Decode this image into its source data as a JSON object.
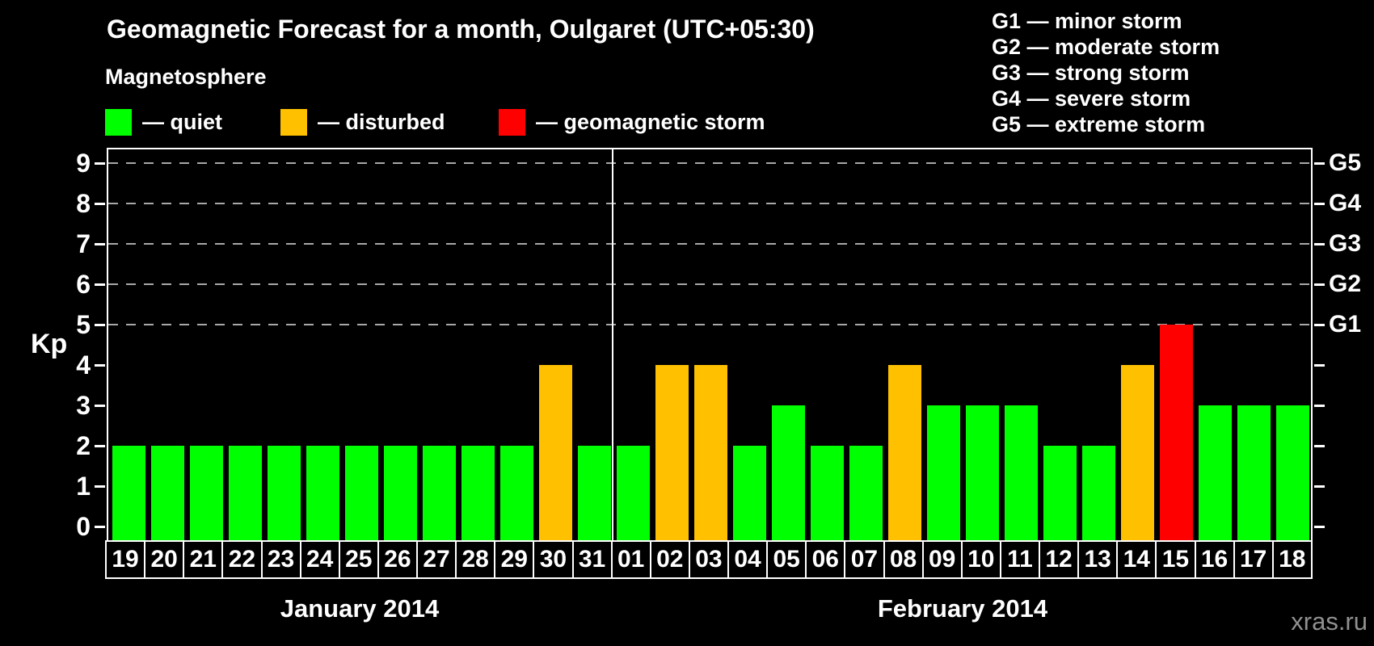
{
  "title": "Geomagnetic Forecast for a month, Oulgaret (UTC+05:30)",
  "legend": {
    "heading": "Magnetosphere",
    "items": [
      {
        "id": "quiet",
        "label": "— quiet",
        "color": "#00ff00"
      },
      {
        "id": "disturbed",
        "label": "— disturbed",
        "color": "#ffc000"
      },
      {
        "id": "storm",
        "label": "— geomagnetic storm",
        "color": "#ff0000"
      }
    ]
  },
  "g_scale_legend": [
    "G1 — minor storm",
    "G2 — moderate storm",
    "G3 — strong storm",
    "G4 — severe storm",
    "G5 — extreme storm"
  ],
  "watermark": "xras.ru",
  "chart_data": {
    "type": "bar",
    "title": "Geomagnetic Forecast for a month, Oulgaret (UTC+05:30)",
    "xlabel": "",
    "ylabel": "Kp",
    "ylim": [
      0,
      9
    ],
    "y_ticks": [
      0,
      1,
      2,
      3,
      4,
      5,
      6,
      7,
      8,
      9
    ],
    "gridlines_at": [
      5,
      6,
      7,
      8,
      9
    ],
    "grid": "dashed",
    "legend_position": "top",
    "right_axis": [
      {
        "kp": 5,
        "label": "G1"
      },
      {
        "kp": 6,
        "label": "G2"
      },
      {
        "kp": 7,
        "label": "G3"
      },
      {
        "kp": 8,
        "label": "G4"
      },
      {
        "kp": 9,
        "label": "G5"
      }
    ],
    "state_colors": {
      "quiet": "#00ff00",
      "disturbed": "#ffc000",
      "storm": "#ff0000"
    },
    "months": [
      {
        "label": "January 2014",
        "days": 13
      },
      {
        "label": "February 2014",
        "days": 18
      }
    ],
    "bars": [
      {
        "day": "19",
        "kp": 2,
        "state": "quiet"
      },
      {
        "day": "20",
        "kp": 2,
        "state": "quiet"
      },
      {
        "day": "21",
        "kp": 2,
        "state": "quiet"
      },
      {
        "day": "22",
        "kp": 2,
        "state": "quiet"
      },
      {
        "day": "23",
        "kp": 2,
        "state": "quiet"
      },
      {
        "day": "24",
        "kp": 2,
        "state": "quiet"
      },
      {
        "day": "25",
        "kp": 2,
        "state": "quiet"
      },
      {
        "day": "26",
        "kp": 2,
        "state": "quiet"
      },
      {
        "day": "27",
        "kp": 2,
        "state": "quiet"
      },
      {
        "day": "28",
        "kp": 2,
        "state": "quiet"
      },
      {
        "day": "29",
        "kp": 2,
        "state": "quiet"
      },
      {
        "day": "30",
        "kp": 4,
        "state": "disturbed"
      },
      {
        "day": "31",
        "kp": 2,
        "state": "quiet"
      },
      {
        "day": "01",
        "kp": 2,
        "state": "quiet"
      },
      {
        "day": "02",
        "kp": 4,
        "state": "disturbed"
      },
      {
        "day": "03",
        "kp": 4,
        "state": "disturbed"
      },
      {
        "day": "04",
        "kp": 2,
        "state": "quiet"
      },
      {
        "day": "05",
        "kp": 3,
        "state": "quiet"
      },
      {
        "day": "06",
        "kp": 2,
        "state": "quiet"
      },
      {
        "day": "07",
        "kp": 2,
        "state": "quiet"
      },
      {
        "day": "08",
        "kp": 4,
        "state": "disturbed"
      },
      {
        "day": "09",
        "kp": 3,
        "state": "quiet"
      },
      {
        "day": "10",
        "kp": 3,
        "state": "quiet"
      },
      {
        "day": "11",
        "kp": 3,
        "state": "quiet"
      },
      {
        "day": "12",
        "kp": 2,
        "state": "quiet"
      },
      {
        "day": "13",
        "kp": 2,
        "state": "quiet"
      },
      {
        "day": "14",
        "kp": 4,
        "state": "disturbed"
      },
      {
        "day": "15",
        "kp": 5,
        "state": "storm"
      },
      {
        "day": "16",
        "kp": 3,
        "state": "quiet"
      },
      {
        "day": "17",
        "kp": 3,
        "state": "quiet"
      },
      {
        "day": "18",
        "kp": 3,
        "state": "quiet"
      }
    ]
  }
}
